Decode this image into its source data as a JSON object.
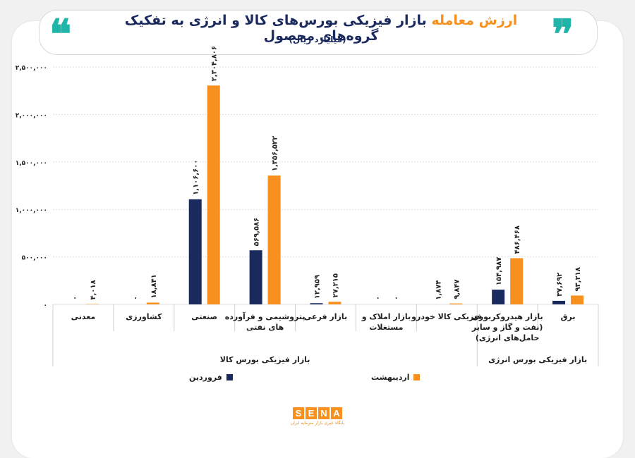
{
  "header": {
    "quote_left": "❝",
    "quote_right": "❞",
    "title_part1": "ارزش معامله ",
    "title_part2": "بازار فیزیکی بورس‌های کالا و انرژی",
    "title_part3": " به تفکیک گروه‌های محصول",
    "subtitle": "(میلیارد ریال)"
  },
  "colors": {
    "farvardin": "#1b2a5e",
    "ordibehesht": "#f7901e",
    "accent": "#1fb5a8"
  },
  "logo": {
    "letters": [
      "S",
      "E",
      "N",
      "A"
    ],
    "tagline": "پایگاه خبری بازار سرمایه ایران"
  },
  "chart_data": {
    "type": "bar",
    "ylim": [
      0,
      2500000
    ],
    "yticks": [
      "۰",
      "۵۰۰,۰۰۰",
      "۱,۰۰۰,۰۰۰",
      "۱,۵۰۰,۰۰۰",
      "۲,۰۰۰,۰۰۰",
      "۲,۵۰۰,۰۰۰"
    ],
    "categories": [
      [
        "معدنی"
      ],
      [
        "کشاورزی"
      ],
      [
        "صنعتی"
      ],
      [
        "پتروشیمی و فرآورده",
        "های نفتی"
      ],
      [
        "بازار فرعی"
      ],
      [
        "بازار املاک و",
        "مستغلات"
      ],
      [
        "فیزیکی کالا خودرو"
      ],
      [
        "بازار هیدروکربوری",
        "(نفت و گاز و سایر",
        "حامل‌های انرژی)"
      ],
      [
        "برق"
      ]
    ],
    "series": [
      {
        "name": "فروردین",
        "values": [
          0,
          0,
          1106600,
          569586,
          12959,
          0,
          1874,
          154987,
          37692
        ],
        "labels": [
          "۰",
          "۰",
          "۱,۱۰۶,۶۰۰",
          "۵۶۹,۵۸۶",
          "۱۲,۹۵۹",
          "۰",
          "۱,۸۷۴",
          "۱۵۴,۹۸۷",
          "۳۷,۶۹۲"
        ]
      },
      {
        "name": "اردیبهشت",
        "values": [
          4018,
          18841,
          2304806,
          1356522,
          27215,
          0,
          9847,
          486468,
          93218
        ],
        "labels": [
          "۴,۰۱۸",
          "۱۸,۸۴۱",
          "۲,۳۰۴,۸۰۶",
          "۱,۳۵۶,۵۲۲",
          "۲۷,۲۱۵",
          "۰",
          "۹,۸۴۷",
          "۴۸۶,۴۶۸",
          "۹۳,۲۱۸"
        ]
      }
    ],
    "groups": [
      {
        "label": "بازار فیزیکی بورس کالا",
        "categories": [
          0,
          6
        ]
      },
      {
        "label": "بازار فیزیکی بورس انرژی",
        "categories": [
          7,
          8
        ]
      }
    ],
    "legend_position": "bottom",
    "grid": true
  }
}
